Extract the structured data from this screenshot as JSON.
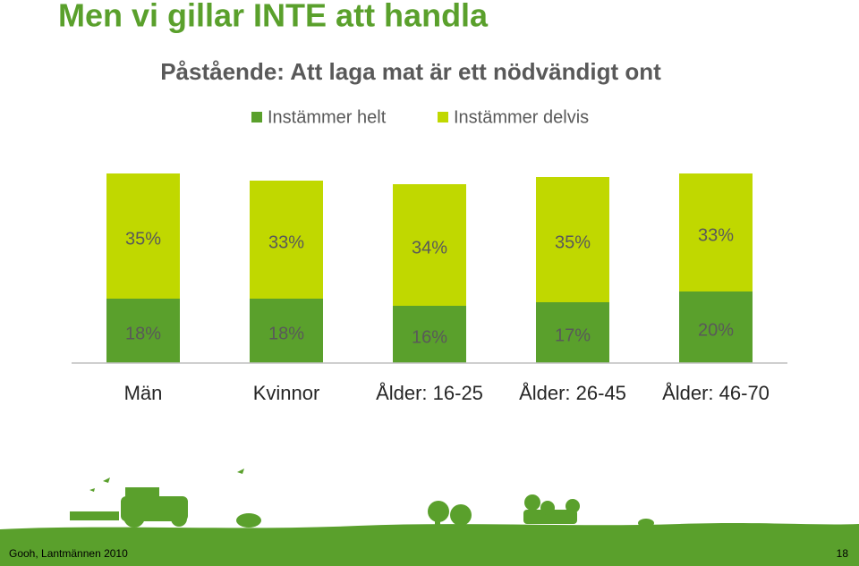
{
  "chart_data": {
    "type": "stacked_bar",
    "title": "Men vi gillar INTE att handla",
    "subtitle": "Påstående: Att laga mat är ett nödvändigt ont",
    "categories": [
      "Män",
      "Kvinnor",
      "Ålder: 16-25",
      "Ålder: 26-45",
      "Ålder: 46-70"
    ],
    "series": [
      {
        "name": "Instämmer helt",
        "color": "#5aa02c",
        "values": [
          18,
          18,
          16,
          17,
          20
        ],
        "value_labels": [
          "18%",
          "18%",
          "16%",
          "17%",
          "20%"
        ]
      },
      {
        "name": "Instämmer delvis",
        "color": "#c0d800",
        "values": [
          35,
          33,
          34,
          35,
          33
        ],
        "value_labels": [
          "35%",
          "33%",
          "34%",
          "35%",
          "33%"
        ]
      }
    ],
    "ylim": [
      0,
      55
    ]
  },
  "footer": {
    "source": "Gooh, Lantmännen 2010",
    "page": "18"
  }
}
